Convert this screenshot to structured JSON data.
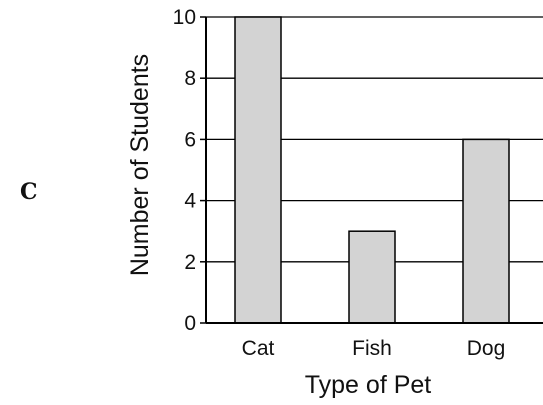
{
  "option_letter": "C",
  "chart_data": {
    "type": "bar",
    "categories": [
      "Cat",
      "Fish",
      "Dog"
    ],
    "values": [
      10,
      3,
      6
    ],
    "title": "",
    "xlabel": "Type of Pet",
    "ylabel": "Number of Students",
    "ylim": [
      0,
      10
    ],
    "yticks": [
      0,
      2,
      4,
      6,
      8,
      10
    ],
    "grid": true,
    "bar_color": "#d3d3d3",
    "edge_color": "#000000"
  }
}
